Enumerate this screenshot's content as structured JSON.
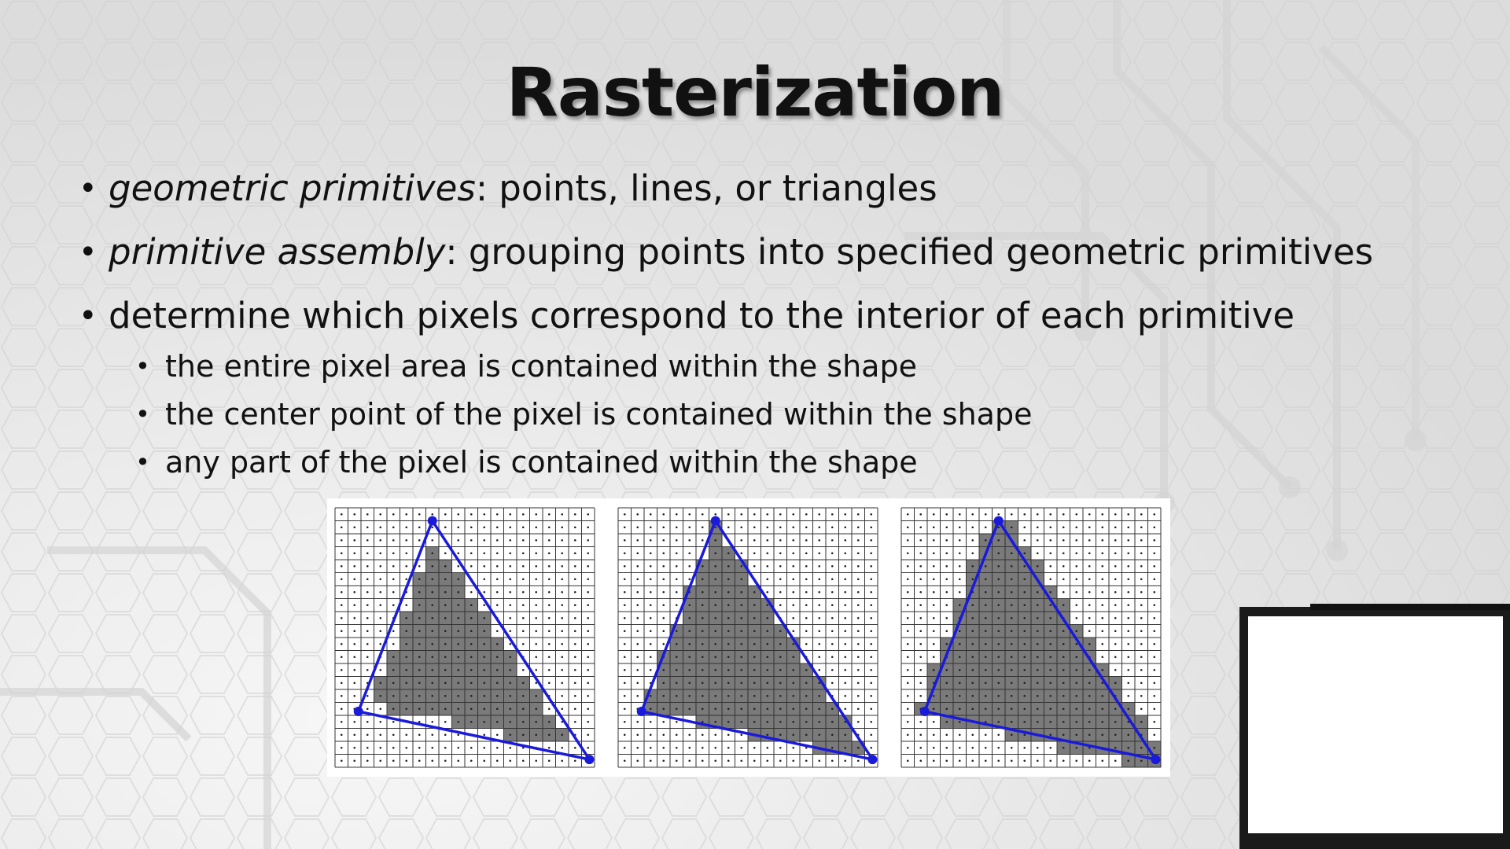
{
  "slide": {
    "title": "Rasterization",
    "bullets": [
      {
        "em": "geometric primitives",
        "text": ": points, lines, or triangles"
      },
      {
        "em": "primitive assembly",
        "text": ": grouping points into specified geometric primitives"
      },
      {
        "em": "",
        "text": "determine which pixels correspond to the interior of each primitive"
      }
    ],
    "sub_bullets": [
      "the entire pixel area is contained within the shape",
      "the center point of the pixel is contained within the shape",
      "any part of the pixel is contained within the shape"
    ],
    "bullet_glyph": "•"
  },
  "figure": {
    "grid_cells": 20,
    "triangle_vertices": [
      [
        7.5,
        1
      ],
      [
        1.8,
        15.7
      ],
      [
        19.6,
        19.4
      ]
    ],
    "fill_rules": [
      "entire",
      "center",
      "any"
    ],
    "colors": {
      "triangle": "#1a1adb",
      "fill": "#7a7a7a",
      "grid": "#333333"
    }
  }
}
